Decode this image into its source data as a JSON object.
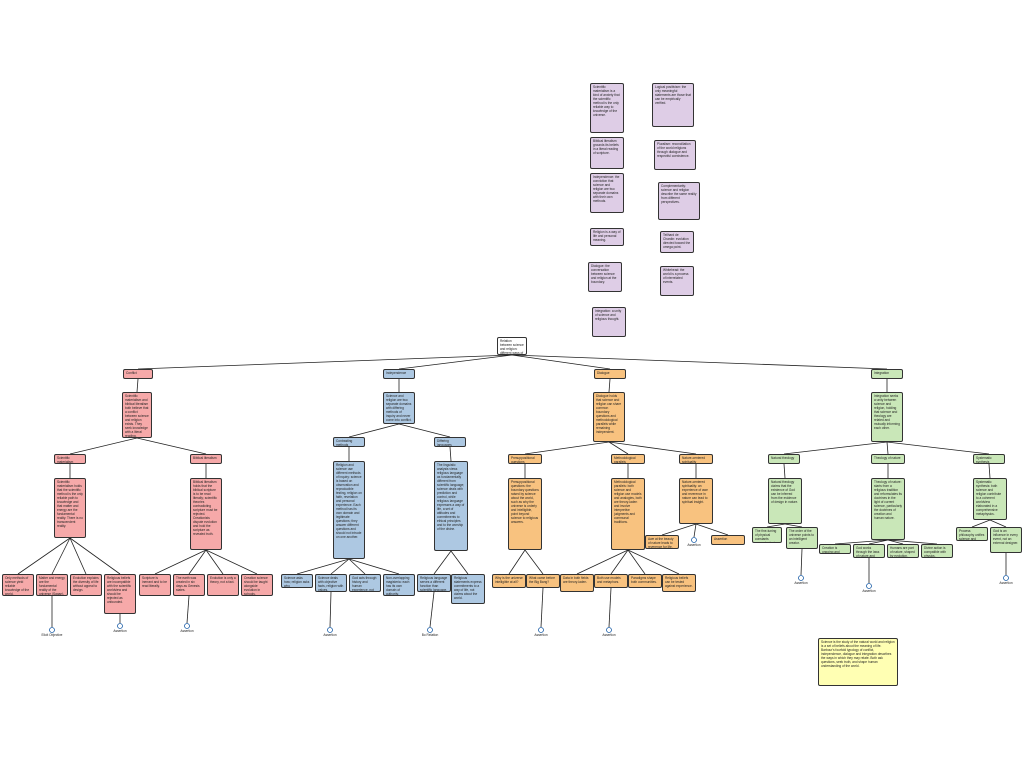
{
  "nodes": [
    {
      "label": "Relation between science and religion: different ways of relating science and religion"
    },
    {
      "label": "Conflict"
    },
    {
      "label": "Independence"
    },
    {
      "label": "Dialogue"
    },
    {
      "label": "Integration"
    },
    {
      "label": "Scientific materialism and biblical literalism both believe that a conflict between science and religion exists. They seek knowledge with a literal reading."
    },
    {
      "label": "Science and religion are two separate domains with differing methods of inquiry and never come into conflict."
    },
    {
      "label": "Dialogue holds that science and religion can share common boundary questions and methodological parallels while remaining independent."
    },
    {
      "label": "Integration seeks a unity between science and religion, holding that science and theology are related and mutually informing each other."
    },
    {
      "label": "Scientific materialism"
    },
    {
      "label": "Biblical literalism"
    },
    {
      "label": "Contrasting methods"
    },
    {
      "label": "Differing languages"
    },
    {
      "label": "Presuppositional questions"
    },
    {
      "label": "Methodological parallels"
    },
    {
      "label": "Nature-centered spirituality"
    },
    {
      "label": "Natural theology"
    },
    {
      "label": "Theology of nature"
    },
    {
      "label": "Systematic synthesis"
    },
    {
      "label": "Scientific materialism holds that the scientific method is the only reliable path to knowledge and that matter and energy are the fundamental reality. There is no transcendent reality."
    },
    {
      "label": "Biblical literalism holds that the biblical scripture is to be read literally; scientific theories contradicting scripture must be rejected. Creationists dispute evolution and hold the scripture as revealed truth."
    },
    {
      "label": "Religion and science use different methods of inquiry: science is based on observation and reproducible testing, religion on faith, revelation and personal experience. Each method has its own domain and legitimate questions; they answer different questions and should not intrude on one another."
    },
    {
      "label": "The linguistic analysis views religious language as fundamentally different from scientific language; science deals with prediction and control, while religious language expresses a way of life, a set of attitudes and commitments to ethical principles and to the worship of the divine."
    },
    {
      "label": "Presuppositional questions: the boundary questions raised by science about the world, such as why the universe is orderly and intelligible, point beyond science to religious answers."
    },
    {
      "label": "Methodological parallels: both science and religion use models and analogies, both are theory-laden and involve interpretive judgments and communal traditions."
    },
    {
      "label": "Nature-centered spirituality: an experience of awe and reverence in nature can lead to spiritual insight."
    },
    {
      "label": "Natural theology claims that the existence of God can be inferred from the evidence of design in nature."
    },
    {
      "label": "Theology of nature: starts from a religious tradition and reformulates its doctrines in the light of current science, particularly the doctrines of creation and human nature."
    },
    {
      "label": "Systematic synthesis: both science and religion contribute to a coherent worldview elaborated in a comprehensive metaphysics."
    },
    {
      "label": "Only methods of science yield reliable knowledge of the world."
    },
    {
      "label": "Matter and energy are the fundamental reality of the universe (Sagan)."
    },
    {
      "label": "Evolution explains the diversity of life without appeal to design."
    },
    {
      "label": "Religious beliefs are incompatible with the scientific worldview and should be rejected as unfounded."
    },
    {
      "label": "Scripture is inerrant and to be read literally."
    },
    {
      "label": "The earth was created in six days as Genesis states."
    },
    {
      "label": "Evolution is only a theory, not a fact."
    },
    {
      "label": "Creation science should be taught alongside evolution in schools."
    },
    {
      "label": "Science asks how; religion asks why."
    },
    {
      "label": "Science deals with objective facts, religion with values."
    },
    {
      "label": "God acts through history and human experience, not nature."
    },
    {
      "label": "Non-overlapping magisteria: each has its own domain of authority."
    },
    {
      "label": "Religious language serves a different function than scientific language."
    },
    {
      "label": "Religious statements express commitments to a way of life, not claims about the world."
    },
    {
      "label": "Why is the universe intelligible at all?"
    },
    {
      "label": "What came before the Big Bang?"
    },
    {
      "label": "Data in both fields are theory-laden."
    },
    {
      "label": "Both use models and metaphors."
    },
    {
      "label": "Paradigms shape both communities."
    },
    {
      "label": "Religious beliefs can be tested against experience."
    },
    {
      "label": "Awe at the beauty of nature leads to reverence for life."
    },
    {
      "label": "Assertion"
    },
    {
      "label": "The fine-tuning of physical constants suggests design."
    },
    {
      "label": "The order of the universe points to an intelligent creator."
    },
    {
      "label": "Creation is ongoing and evolving."
    },
    {
      "label": "God works through the laws of nature and chance."
    },
    {
      "label": "Humans are part of nature, shaped by evolution."
    },
    {
      "label": "Divine action is compatible with physics."
    },
    {
      "label": "Process philosophy unifies science and religion."
    },
    {
      "label": "God is an influence in every event, not an external designer."
    }
  ],
  "notes": [
    {
      "label": "Scientific materialism is a kind of anxiety that the scientific method is the only reliable way to knowledge of the universe."
    },
    {
      "label": "Biblical literalism grounds its beliefs in a literal reading of scripture."
    },
    {
      "label": "Independence: the conviction that science and religion are two separate domains with their own methods."
    },
    {
      "label": "Religion is a way of life and personal meaning."
    },
    {
      "label": "Dialogue: the conversation between science and religion at the boundary."
    },
    {
      "label": "Integration: a unity of science and religious thought."
    },
    {
      "label": "Logical positivism: the only meaningful statements are those that can be empirically verified."
    },
    {
      "label": "Pluralism: reconciliation of the world religions through dialogue and respectful coexistence."
    },
    {
      "label": "Complementarity: science and religion describe the same reality from different perspectives."
    },
    {
      "label": "Teilhard de Chardin: evolution directed toward the omega point."
    },
    {
      "label": "Whitehead: the world is a process of interrelated events."
    }
  ],
  "icons": [
    {
      "label": "Elicit Objective"
    },
    {
      "label": "Assertion"
    },
    {
      "label": "Assertion"
    },
    {
      "label": "Assertion"
    },
    {
      "label": "Bo Relation"
    },
    {
      "label": "Assertion"
    },
    {
      "label": "Assertion"
    },
    {
      "label": "Assertion"
    },
    {
      "label": "Assertion"
    },
    {
      "label": "Assertion"
    },
    {
      "label": "Assertion"
    }
  ],
  "summary": "Science is the study of the natural world and religion is a set of beliefs about the meaning of life. Barbour's fourfold typology of conflict, independence, dialogue and integration describes the ways in which they may relate. Both ask questions, seek truth, and shape human understanding of the world."
}
